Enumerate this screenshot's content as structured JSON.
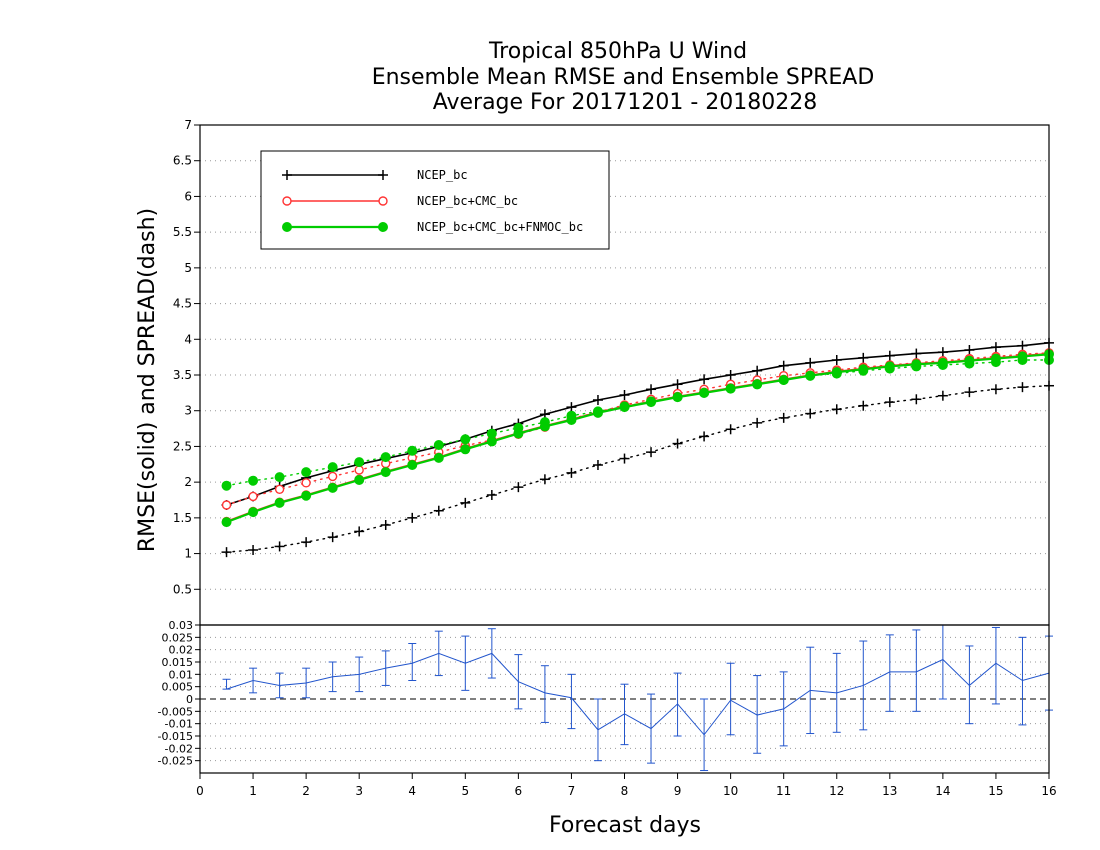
{
  "chart_data": [
    {
      "type": "line",
      "title_lines": [
        "Tropical 850hPa U Wind",
        "Ensemble Mean RMSE and Ensemble SPREAD",
        "Average For 20171201 - 20180228"
      ],
      "xlabel": "Forecast days",
      "ylabel": "RMSE(solid) and SPREAD(dash)",
      "xlim": [
        0,
        16
      ],
      "ylim": [
        0,
        7
      ],
      "x_ticks": [
        "0",
        "1",
        "2",
        "3",
        "4",
        "5",
        "6",
        "7",
        "8",
        "9",
        "10",
        "11",
        "12",
        "13",
        "14",
        "15",
        "16"
      ],
      "y_ticks": [
        "0.5",
        "1",
        "1.5",
        "2",
        "2.5",
        "3",
        "3.5",
        "4",
        "4.5",
        "5",
        "5.5",
        "6",
        "6.5",
        "7"
      ],
      "grid": true,
      "legend_position": "top-left",
      "x": [
        0.5,
        1,
        1.5,
        2,
        2.5,
        3,
        3.5,
        4,
        4.5,
        5,
        5.5,
        6,
        6.5,
        7,
        7.5,
        8,
        8.5,
        9,
        9.5,
        10,
        10.5,
        11,
        11.5,
        12,
        12.5,
        13,
        13.5,
        14,
        14.5,
        15,
        15.5,
        16
      ],
      "series": [
        {
          "name": "NCEP_bc",
          "color": "#000000",
          "marker": "plus",
          "rmse": [
            1.68,
            1.8,
            1.94,
            2.06,
            2.16,
            2.25,
            2.33,
            2.41,
            2.5,
            2.6,
            2.72,
            2.82,
            2.95,
            3.05,
            3.15,
            3.22,
            3.3,
            3.37,
            3.44,
            3.5,
            3.56,
            3.63,
            3.67,
            3.71,
            3.74,
            3.77,
            3.8,
            3.82,
            3.85,
            3.89,
            3.91,
            3.95
          ],
          "spread": [
            1.02,
            1.05,
            1.1,
            1.16,
            1.23,
            1.31,
            1.4,
            1.5,
            1.6,
            1.71,
            1.82,
            1.93,
            2.04,
            2.13,
            2.24,
            2.33,
            2.42,
            2.54,
            2.64,
            2.74,
            2.83,
            2.9,
            2.96,
            3.02,
            3.07,
            3.12,
            3.16,
            3.21,
            3.26,
            3.3,
            3.33,
            3.35
          ]
        },
        {
          "name": "NCEP_bc+CMC_bc",
          "color": "#ff3333",
          "marker": "open-circle",
          "rmse": [
            1.45,
            1.59,
            1.72,
            1.82,
            1.93,
            2.04,
            2.15,
            2.25,
            2.35,
            2.47,
            2.58,
            2.69,
            2.79,
            2.88,
            2.98,
            3.06,
            3.13,
            3.2,
            3.26,
            3.32,
            3.38,
            3.44,
            3.5,
            3.55,
            3.59,
            3.63,
            3.66,
            3.68,
            3.71,
            3.74,
            3.77,
            3.8
          ],
          "spread": [
            1.68,
            1.8,
            1.9,
            1.99,
            2.08,
            2.17,
            2.26,
            2.34,
            2.42,
            2.51,
            2.59,
            2.67,
            2.77,
            2.89,
            2.98,
            3.08,
            3.16,
            3.24,
            3.3,
            3.37,
            3.43,
            3.49,
            3.53,
            3.57,
            3.61,
            3.64,
            3.67,
            3.7,
            3.73,
            3.76,
            3.79,
            3.81
          ]
        },
        {
          "name": "NCEP_bc+CMC_bc+FNMOC_bc",
          "color": "#00cc00",
          "marker": "filled-circle",
          "rmse": [
            1.44,
            1.58,
            1.71,
            1.81,
            1.92,
            2.03,
            2.14,
            2.24,
            2.34,
            2.46,
            2.57,
            2.68,
            2.78,
            2.87,
            2.97,
            3.05,
            3.12,
            3.19,
            3.25,
            3.31,
            3.37,
            3.43,
            3.49,
            3.54,
            3.58,
            3.62,
            3.65,
            3.67,
            3.7,
            3.73,
            3.76,
            3.79
          ],
          "spread": [
            1.95,
            2.02,
            2.07,
            2.14,
            2.21,
            2.28,
            2.35,
            2.44,
            2.52,
            2.6,
            2.68,
            2.76,
            2.84,
            2.93,
            2.99,
            3.06,
            3.13,
            3.19,
            3.25,
            3.31,
            3.37,
            3.43,
            3.49,
            3.52,
            3.56,
            3.59,
            3.62,
            3.64,
            3.66,
            3.68,
            3.71,
            3.71
          ]
        }
      ]
    },
    {
      "type": "line",
      "xlim": [
        0,
        16
      ],
      "ylim": [
        -0.03,
        0.03
      ],
      "y_ticks": [
        "-0.025",
        "-0.02",
        "-0.015",
        "-0.01",
        "-0.005",
        "0",
        "0.005",
        "0.01",
        "0.015",
        "0.02",
        "0.025",
        "0.03"
      ],
      "grid": true,
      "series": [
        {
          "color": "#2255cc",
          "x": [
            0.5,
            1,
            1.5,
            2,
            2.5,
            3,
            3.5,
            4,
            4.5,
            5,
            5.5,
            6,
            6.5,
            7,
            7.5,
            8,
            8.5,
            9,
            9.5,
            10,
            10.5,
            11,
            11.5,
            12,
            12.5,
            13,
            13.5,
            14,
            14.5,
            15,
            15.5,
            16
          ],
          "values": [
            0.004,
            0.0075,
            0.0055,
            0.0065,
            0.009,
            0.01,
            0.0125,
            0.0145,
            0.0185,
            0.0145,
            0.0185,
            0.007,
            0.0025,
            0.0005,
            -0.0125,
            -0.006,
            -0.012,
            -0.002,
            -0.0145,
            -0.0005,
            -0.0065,
            -0.004,
            0.0035,
            0.0025,
            0.0055,
            0.011,
            0.011,
            0.016,
            0.0055,
            0.0145,
            0.0075,
            0.0105
          ],
          "error_low": [
            0.0,
            0.005,
            0.005,
            0.006,
            0.006,
            0.007,
            0.007,
            0.007,
            0.009,
            0.011,
            0.01,
            0.011,
            0.012,
            0.0125,
            0.0125,
            0.0125,
            0.014,
            0.013,
            0.0145,
            0.014,
            0.0155,
            0.015,
            0.0175,
            0.016,
            0.018,
            0.016,
            0.016,
            0.016,
            0.0155,
            0.0165,
            0.018,
            0.015
          ],
          "error_high": [
            0.004,
            0.005,
            0.005,
            0.006,
            0.006,
            0.007,
            0.007,
            0.008,
            0.009,
            0.011,
            0.01,
            0.011,
            0.011,
            0.0095,
            0.0125,
            0.012,
            0.014,
            0.0125,
            0.0145,
            0.015,
            0.016,
            0.015,
            0.0175,
            0.016,
            0.018,
            0.015,
            0.017,
            0.016,
            0.016,
            0.0145,
            0.0175,
            0.015
          ]
        }
      ]
    }
  ]
}
